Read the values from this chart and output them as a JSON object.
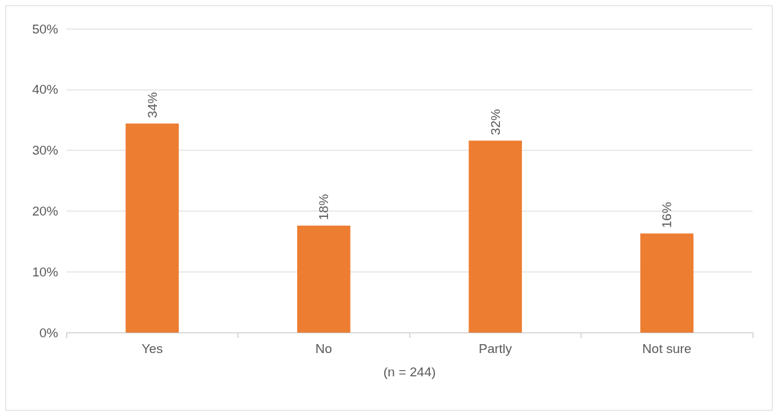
{
  "chart_data": {
    "type": "bar",
    "xlabel": "(n = 244)",
    "categories": [
      "Yes",
      "No",
      "Partly",
      "Not sure"
    ],
    "values": [
      34.4,
      17.6,
      31.6,
      16.3
    ],
    "value_labels": [
      "34%",
      "18%",
      "32%",
      "16%"
    ],
    "color": "#ed7d31",
    "ylim": [
      0,
      50
    ],
    "yticks": [
      {
        "value": 0,
        "label": "0%"
      },
      {
        "value": 10,
        "label": "10%"
      },
      {
        "value": 20,
        "label": "20%"
      },
      {
        "value": 30,
        "label": "30%"
      },
      {
        "value": 40,
        "label": "40%"
      },
      {
        "value": 50,
        "label": "50%"
      }
    ],
    "grid": "y"
  }
}
